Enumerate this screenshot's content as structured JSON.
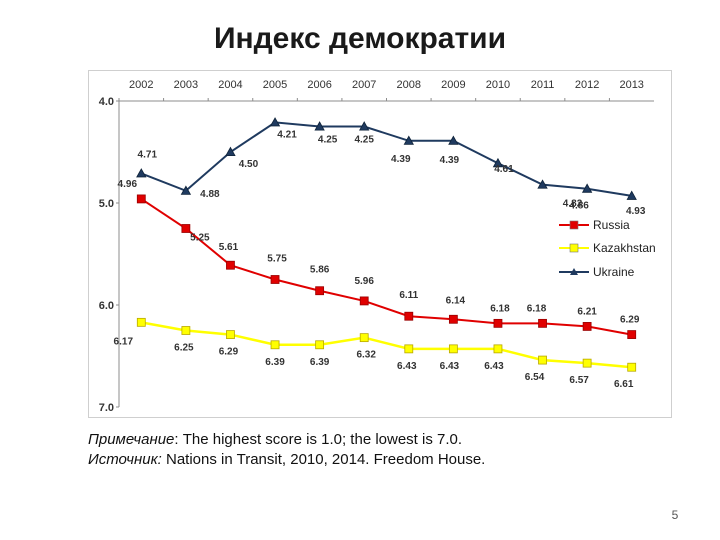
{
  "slide": {
    "title": "Индекс демократии",
    "note_label": "Примечание",
    "note_text": ": The highest score is 1.0;  the lowest is 7.0.",
    "source_label": "Источник:",
    "source_text": " Nations in Transit, 2010, 2014. Freedom House.",
    "page_number": "5"
  },
  "chart_data": {
    "type": "line",
    "title": "",
    "xlabel": "",
    "ylabel": "",
    "categories": [
      "2002",
      "2003",
      "2004",
      "2005",
      "2006",
      "2007",
      "2008",
      "2009",
      "2010",
      "2011",
      "2012",
      "2013"
    ],
    "y_ticks": [
      "4.0",
      "5.0",
      "6.0",
      "7.0"
    ],
    "ylim": [
      4.0,
      7.0
    ],
    "y_reversed": true,
    "x_axis_position": "top",
    "grid": false,
    "legend_position": "right",
    "series": [
      {
        "name": "Russia",
        "color": "#e00000",
        "marker": "square",
        "values": [
          4.96,
          5.25,
          5.61,
          5.75,
          5.86,
          5.96,
          6.11,
          6.14,
          6.18,
          6.18,
          6.21,
          6.29
        ],
        "labels": [
          "4.96",
          "5.25",
          "5.61",
          "5.75",
          "5.86",
          "5.96",
          "6.11",
          "6.14",
          "6.18",
          "6.18",
          "6.21",
          "6.29"
        ]
      },
      {
        "name": "Kazakhstan",
        "color": "#ffff00",
        "marker": "square",
        "values": [
          6.17,
          6.25,
          6.29,
          6.39,
          6.39,
          6.32,
          6.43,
          6.43,
          6.43,
          6.54,
          6.57,
          6.61
        ],
        "labels": [
          "6.17",
          "6.25",
          "6.29",
          "6.39",
          "6.39",
          "6.32",
          "6.43",
          "6.43",
          "6.43",
          "6.54",
          "6.57",
          "6.61"
        ]
      },
      {
        "name": "Ukraine",
        "color": "#1f3a5f",
        "marker": "triangle",
        "values": [
          4.71,
          4.88,
          4.5,
          4.21,
          4.25,
          4.25,
          4.39,
          4.39,
          4.61,
          4.82,
          4.86,
          4.93
        ],
        "labels": [
          "4.71",
          "4.88",
          "4.50",
          "4.21",
          "4.25",
          "4.25",
          "4.39",
          "4.39",
          "4.61",
          "4.82",
          "4.86",
          "4.93"
        ]
      }
    ]
  }
}
